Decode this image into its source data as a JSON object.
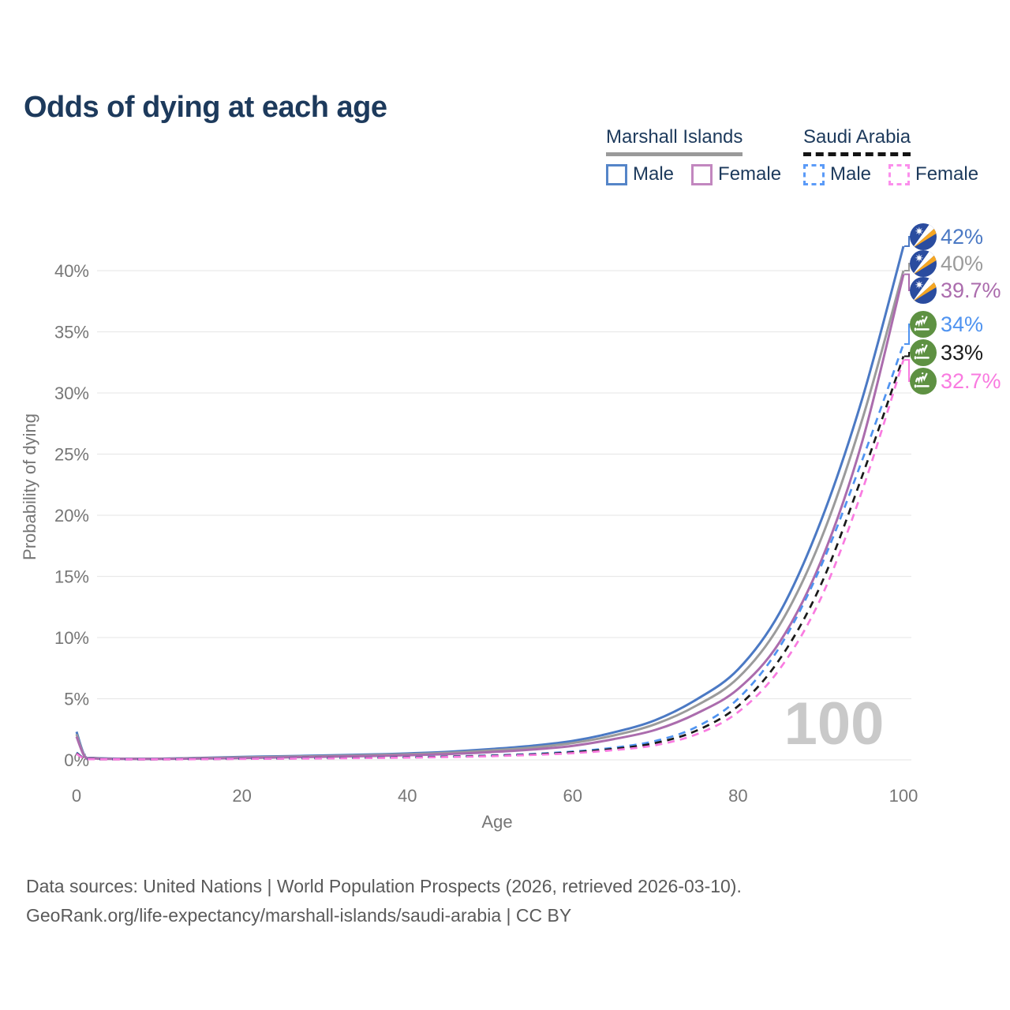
{
  "title": "Odds of dying at each age",
  "legend": {
    "groups": [
      {
        "name": "Marshall Islands",
        "underline": "solid",
        "underline_color": "#9a9a9a",
        "items": [
          {
            "label": "Male",
            "color": "#5585c8",
            "dash": false
          },
          {
            "label": "Female",
            "color": "#c287bf",
            "dash": false
          }
        ]
      },
      {
        "name": "Saudi Arabia",
        "underline": "dashed",
        "underline_color": "#141414",
        "items": [
          {
            "label": "Male",
            "color": "#5b9bf8",
            "dash": true
          },
          {
            "label": "Female",
            "color": "#fb8fec",
            "dash": true
          }
        ]
      }
    ]
  },
  "chart_data": {
    "type": "line",
    "title": "Odds of dying at each age",
    "xlabel": "Age",
    "ylabel": "Probability of dying",
    "xlim": [
      0,
      100
    ],
    "ylim_percent": [
      0,
      43
    ],
    "grid": "horizontal",
    "legend_position": "top-right",
    "watermark": "100",
    "x_ticks": [
      {
        "label": "0",
        "value": 0
      },
      {
        "label": "20",
        "value": 20
      },
      {
        "label": "40",
        "value": 40
      },
      {
        "label": "60",
        "value": 60
      },
      {
        "label": "80",
        "value": 80
      },
      {
        "label": "100",
        "value": 100
      }
    ],
    "y_ticks": [
      {
        "label": "0%",
        "value": 0
      },
      {
        "label": "5%",
        "value": 5
      },
      {
        "label": "10%",
        "value": 10
      },
      {
        "label": "15%",
        "value": 15
      },
      {
        "label": "20%",
        "value": 20
      },
      {
        "label": "25%",
        "value": 25
      },
      {
        "label": "30%",
        "value": 30
      },
      {
        "label": "35%",
        "value": 35
      },
      {
        "label": "40%",
        "value": 40
      }
    ],
    "series": [
      {
        "id": "mi-male",
        "name": "Marshall Islands Male",
        "color": "#4b79c4",
        "dash": false,
        "flag": "marshall-islands-flag",
        "end_label": {
          "text": "42%",
          "color": "#4b79c4"
        },
        "points": [
          [
            0,
            2.3
          ],
          [
            1,
            0.3
          ],
          [
            2,
            0.16
          ],
          [
            5,
            0.1
          ],
          [
            10,
            0.1
          ],
          [
            15,
            0.16
          ],
          [
            20,
            0.24
          ],
          [
            25,
            0.3
          ],
          [
            30,
            0.36
          ],
          [
            35,
            0.43
          ],
          [
            40,
            0.52
          ],
          [
            45,
            0.66
          ],
          [
            50,
            0.88
          ],
          [
            55,
            1.15
          ],
          [
            60,
            1.55
          ],
          [
            65,
            2.25
          ],
          [
            70,
            3.25
          ],
          [
            75,
            4.95
          ],
          [
            80,
            7.4
          ],
          [
            85,
            12.0
          ],
          [
            90,
            19.5
          ],
          [
            95,
            29.5
          ],
          [
            100,
            42.0
          ]
        ]
      },
      {
        "id": "mi-combined",
        "name": "Marshall Islands (combined)",
        "color": "#9b9b9b",
        "dash": false,
        "flag": "marshall-islands-flag",
        "end_label": {
          "text": "40%",
          "color": "#9b9b9b"
        },
        "points": [
          [
            0,
            2.1
          ],
          [
            1,
            0.27
          ],
          [
            2,
            0.14
          ],
          [
            5,
            0.09
          ],
          [
            10,
            0.09
          ],
          [
            15,
            0.14
          ],
          [
            20,
            0.2
          ],
          [
            25,
            0.26
          ],
          [
            30,
            0.31
          ],
          [
            35,
            0.38
          ],
          [
            40,
            0.46
          ],
          [
            45,
            0.58
          ],
          [
            50,
            0.77
          ],
          [
            55,
            1.0
          ],
          [
            60,
            1.38
          ],
          [
            65,
            2.0
          ],
          [
            70,
            2.92
          ],
          [
            75,
            4.45
          ],
          [
            80,
            6.7
          ],
          [
            85,
            11.0
          ],
          [
            90,
            18.0
          ],
          [
            95,
            27.8
          ],
          [
            100,
            40.0
          ]
        ]
      },
      {
        "id": "mi-female",
        "name": "Marshall Islands Female",
        "color": "#ab6cad",
        "dash": false,
        "flag": "marshall-islands-flag",
        "end_label": {
          "text": "39.7%",
          "color": "#ab6cad"
        },
        "points": [
          [
            0,
            1.9
          ],
          [
            1,
            0.24
          ],
          [
            2,
            0.12
          ],
          [
            5,
            0.08
          ],
          [
            10,
            0.08
          ],
          [
            15,
            0.11
          ],
          [
            20,
            0.15
          ],
          [
            25,
            0.2
          ],
          [
            30,
            0.25
          ],
          [
            35,
            0.31
          ],
          [
            40,
            0.38
          ],
          [
            45,
            0.48
          ],
          [
            50,
            0.63
          ],
          [
            55,
            0.84
          ],
          [
            60,
            1.15
          ],
          [
            65,
            1.7
          ],
          [
            70,
            2.45
          ],
          [
            75,
            3.8
          ],
          [
            80,
            5.8
          ],
          [
            85,
            9.6
          ],
          [
            90,
            16.2
          ],
          [
            95,
            26.0
          ],
          [
            100,
            39.7
          ]
        ]
      },
      {
        "id": "sa-male",
        "name": "Saudi Arabia Male",
        "color": "#4f93f0",
        "dash": true,
        "flag": "saudi-arabia-flag",
        "end_label": {
          "text": "34%",
          "color": "#4f93f0"
        },
        "points": [
          [
            0,
            0.6
          ],
          [
            1,
            0.09
          ],
          [
            2,
            0.06
          ],
          [
            5,
            0.05
          ],
          [
            10,
            0.05
          ],
          [
            15,
            0.07
          ],
          [
            20,
            0.1
          ],
          [
            25,
            0.12
          ],
          [
            30,
            0.15
          ],
          [
            35,
            0.18
          ],
          [
            40,
            0.22
          ],
          [
            45,
            0.28
          ],
          [
            50,
            0.36
          ],
          [
            55,
            0.48
          ],
          [
            60,
            0.68
          ],
          [
            65,
            1.0
          ],
          [
            70,
            1.55
          ],
          [
            75,
            2.7
          ],
          [
            80,
            5.0
          ],
          [
            85,
            9.2
          ],
          [
            90,
            15.8
          ],
          [
            95,
            24.5
          ],
          [
            100,
            34.0
          ]
        ]
      },
      {
        "id": "sa-combined",
        "name": "Saudi Arabia (combined)",
        "color": "#1a1a1a",
        "dash": true,
        "flag": "saudi-arabia-flag",
        "end_label": {
          "text": "33%",
          "color": "#1a1a1a"
        },
        "points": [
          [
            0,
            0.55
          ],
          [
            1,
            0.085
          ],
          [
            2,
            0.055
          ],
          [
            5,
            0.045
          ],
          [
            10,
            0.045
          ],
          [
            15,
            0.065
          ],
          [
            20,
            0.09
          ],
          [
            25,
            0.11
          ],
          [
            30,
            0.14
          ],
          [
            35,
            0.17
          ],
          [
            40,
            0.2
          ],
          [
            45,
            0.26
          ],
          [
            50,
            0.33
          ],
          [
            55,
            0.44
          ],
          [
            60,
            0.62
          ],
          [
            65,
            0.9
          ],
          [
            70,
            1.38
          ],
          [
            75,
            2.4
          ],
          [
            80,
            4.4
          ],
          [
            85,
            8.2
          ],
          [
            90,
            14.3
          ],
          [
            95,
            23.2
          ],
          [
            100,
            33.0
          ]
        ]
      },
      {
        "id": "sa-female",
        "name": "Saudi Arabia Female",
        "color": "#f97be0",
        "dash": true,
        "flag": "saudi-arabia-flag",
        "end_label": {
          "text": "32.7%",
          "color": "#f97be0"
        },
        "points": [
          [
            0,
            0.5
          ],
          [
            1,
            0.08
          ],
          [
            2,
            0.05
          ],
          [
            5,
            0.04
          ],
          [
            10,
            0.04
          ],
          [
            15,
            0.055
          ],
          [
            20,
            0.08
          ],
          [
            25,
            0.1
          ],
          [
            30,
            0.12
          ],
          [
            35,
            0.15
          ],
          [
            40,
            0.18
          ],
          [
            45,
            0.23
          ],
          [
            50,
            0.3
          ],
          [
            55,
            0.4
          ],
          [
            60,
            0.55
          ],
          [
            65,
            0.8
          ],
          [
            70,
            1.2
          ],
          [
            75,
            2.1
          ],
          [
            80,
            3.9
          ],
          [
            85,
            7.4
          ],
          [
            90,
            13.2
          ],
          [
            95,
            22.0
          ],
          [
            100,
            32.7
          ]
        ]
      }
    ],
    "flag_colors": {
      "marshall_blue": "#2a4c9f",
      "marshall_orange": "#f5a623",
      "saudi_green": "#5e9142"
    }
  },
  "footer": {
    "line1": "Data sources: United Nations | World Population Prospects (2026, retrieved 2026-03-10).",
    "line2": "GeoRank.org/life-expectancy/marshall-islands/saudi-arabia | CC BY"
  }
}
